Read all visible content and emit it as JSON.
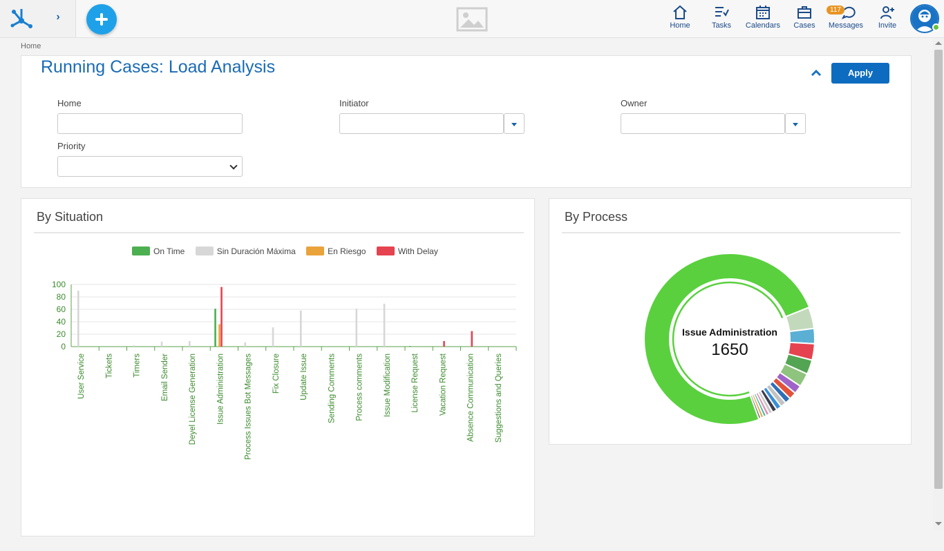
{
  "topbar": {
    "nav": [
      {
        "label": "Home",
        "icon": "home-icon"
      },
      {
        "label": "Tasks",
        "icon": "tasks-icon"
      },
      {
        "label": "Calendars",
        "icon": "calendar-icon"
      },
      {
        "label": "Cases",
        "icon": "briefcase-icon"
      },
      {
        "label": "Messages",
        "icon": "messages-icon",
        "badge": "117"
      },
      {
        "label": "Invite",
        "icon": "invite-icon"
      }
    ]
  },
  "breadcrumb": "Home",
  "filters": {
    "title": "Running Cases: Load Analysis",
    "apply_label": "Apply",
    "home_label": "Home",
    "home_value": "",
    "initiator_label": "Initiator",
    "initiator_value": "",
    "owner_label": "Owner",
    "owner_value": "",
    "priority_label": "Priority",
    "priority_value": ""
  },
  "by_situation": {
    "title": "By Situation",
    "legend": [
      {
        "label": "On Time",
        "color": "#4caf50"
      },
      {
        "label": "Sin Duración Máxima",
        "color": "#d7d7d7"
      },
      {
        "label": "En Riesgo",
        "color": "#e9a33a"
      },
      {
        "label": "With Delay",
        "color": "#e5434f"
      }
    ]
  },
  "by_process": {
    "title": "By Process",
    "center_label": "Issue Administration",
    "center_value": "1650"
  },
  "chart_data": [
    {
      "type": "bar",
      "title": "By Situation",
      "categories": [
        "User Service",
        "Tickets",
        "Timers",
        "Email Sender",
        "Deyel License Generation",
        "Issue Administration",
        "Process Issues Bot Messages",
        "Fix Closure",
        "Update Issue",
        "Sending Comments",
        "Process comments",
        "Issue Modification",
        "License Request",
        "Vacation Request",
        "Absence Communication",
        "Suggestions and Queries"
      ],
      "series": [
        {
          "name": "On Time",
          "color": "#4caf50",
          "values": [
            0,
            0,
            0,
            0,
            0,
            61,
            0,
            0,
            0,
            0,
            0,
            0,
            1,
            0,
            0,
            0
          ]
        },
        {
          "name": "Sin Duración Máxima",
          "color": "#d7d7d7",
          "values": [
            90,
            0,
            2,
            8,
            9,
            0,
            7,
            31,
            58,
            0,
            61,
            69,
            0,
            0,
            0,
            0
          ]
        },
        {
          "name": "En Riesgo",
          "color": "#e9a33a",
          "values": [
            0,
            0,
            0,
            0,
            0,
            36,
            0,
            0,
            0,
            0,
            0,
            0,
            0,
            0,
            0,
            0
          ]
        },
        {
          "name": "With Delay",
          "color": "#e5434f",
          "values": [
            0,
            0,
            0,
            0,
            0,
            96,
            0,
            0,
            0,
            0,
            0,
            0,
            0,
            9,
            25,
            0
          ]
        }
      ],
      "yticks": [
        "100",
        "80",
        "60",
        "40",
        "20",
        "0"
      ],
      "ylim": [
        0,
        100
      ],
      "grid": true,
      "legend_position": "top"
    },
    {
      "type": "pie",
      "title": "By Process",
      "variant": "donut",
      "highlight": {
        "label": "Issue Administration",
        "value": 1650
      },
      "slices": [
        {
          "value": 1650,
          "color": "#5ad03e"
        },
        {
          "value": 90,
          "color": "#c3d9bb"
        },
        {
          "value": 64,
          "color": "#5bafd4"
        },
        {
          "value": 69,
          "color": "#e5434f"
        },
        {
          "value": 61,
          "color": "#53a553"
        },
        {
          "value": 58,
          "color": "#8fc47e"
        },
        {
          "value": 36,
          "color": "#a063c8"
        },
        {
          "value": 31,
          "color": "#e2523b"
        },
        {
          "value": 25,
          "color": "#2e6fb8"
        },
        {
          "value": 25,
          "color": "#c2c2c2"
        },
        {
          "value": 22,
          "color": "#3a8fd6"
        },
        {
          "value": 20,
          "color": "#3c3c50"
        },
        {
          "value": 16,
          "color": "#c9c9c9"
        },
        {
          "value": 14,
          "color": "#e58fb0"
        },
        {
          "value": 12,
          "color": "#36b7a6"
        },
        {
          "value": 12,
          "color": "#e9a33a"
        },
        {
          "value": 10,
          "color": "#6a6a6a"
        }
      ]
    }
  ]
}
